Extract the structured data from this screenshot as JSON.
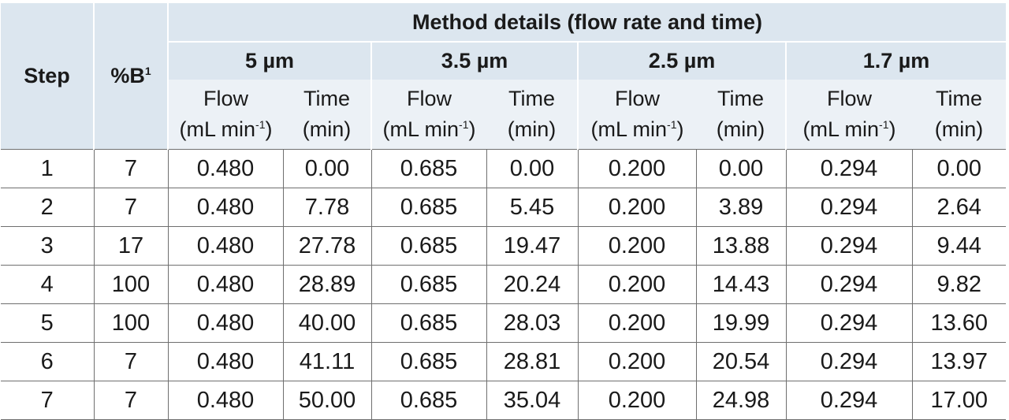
{
  "table": {
    "step_header": "Step",
    "b_header": "%B",
    "b_header_note": "1",
    "group_title": "Method details (flow rate and time)",
    "particle_sizes": [
      "5 µm",
      "3.5 µm",
      "2.5 µm",
      "1.7 µm"
    ],
    "flow_label": "Flow",
    "flow_unit": "(mL min",
    "flow_unit_exp": "-1",
    "flow_unit_close": ")",
    "time_label": "Time",
    "time_unit": "(min)",
    "rows": [
      {
        "step": "1",
        "b": "7",
        "cells": [
          "0.480",
          "0.00",
          "0.685",
          "0.00",
          "0.200",
          "0.00",
          "0.294",
          "0.00"
        ]
      },
      {
        "step": "2",
        "b": "7",
        "cells": [
          "0.480",
          "7.78",
          "0.685",
          "5.45",
          "0.200",
          "3.89",
          "0.294",
          "2.64"
        ]
      },
      {
        "step": "3",
        "b": "17",
        "cells": [
          "0.480",
          "27.78",
          "0.685",
          "19.47",
          "0.200",
          "13.88",
          "0.294",
          "9.44"
        ]
      },
      {
        "step": "4",
        "b": "100",
        "cells": [
          "0.480",
          "28.89",
          "0.685",
          "20.24",
          "0.200",
          "14.43",
          "0.294",
          "9.82"
        ]
      },
      {
        "step": "5",
        "b": "100",
        "cells": [
          "0.480",
          "40.00",
          "0.685",
          "28.03",
          "0.200",
          "19.99",
          "0.294",
          "13.60"
        ]
      },
      {
        "step": "6",
        "b": "7",
        "cells": [
          "0.480",
          "41.11",
          "0.685",
          "28.81",
          "0.200",
          "20.54",
          "0.294",
          "13.97"
        ]
      },
      {
        "step": "7",
        "b": "7",
        "cells": [
          "0.480",
          "50.00",
          "0.685",
          "35.04",
          "0.200",
          "24.98",
          "0.294",
          "17.00"
        ]
      }
    ]
  }
}
